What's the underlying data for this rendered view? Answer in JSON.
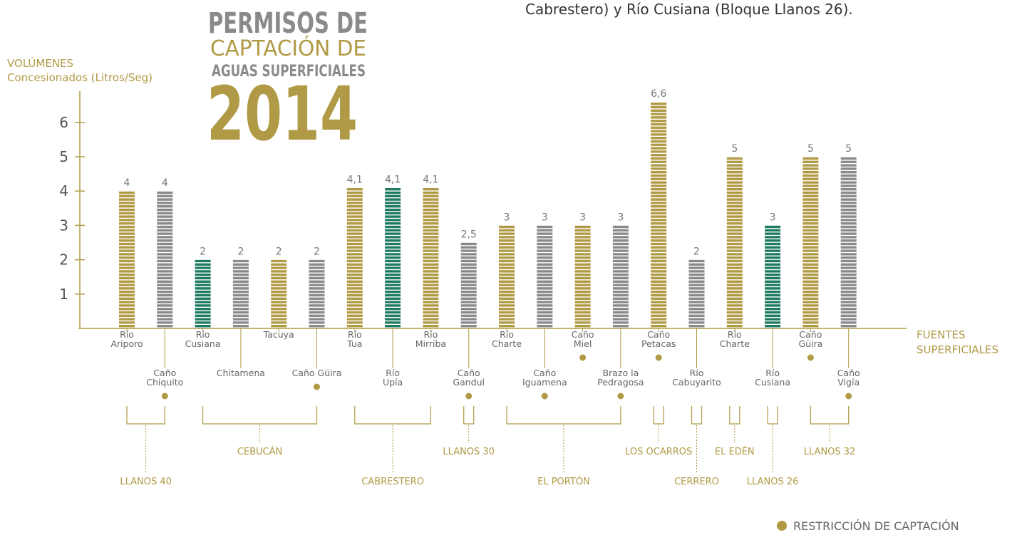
{
  "top_text": "Cabrestero) y Río Cusiana (Bloque Llanos 26).",
  "chart_data": {
    "type": "bar",
    "title_lines": [
      "PERMISOS DE",
      "CAPTACIÓN DE",
      "AGUAS SUPERFICIALES",
      "2014"
    ],
    "y_label": [
      "VOLÚMENES",
      "Concesionados (Litros/Seg)"
    ],
    "x_label": [
      "FUENTES",
      "SUPERFICIALES"
    ],
    "categories": [
      [
        "Río",
        "Ariporo"
      ],
      [
        "Caño",
        "Chiquito"
      ],
      [
        "Río",
        "Cusiana"
      ],
      [
        "Chitamena"
      ],
      [
        "Tacuya"
      ],
      [
        "Caño Güira"
      ],
      [
        "Río",
        "Tua"
      ],
      [
        "Río",
        "Upía"
      ],
      [
        "Río",
        "Mirriba"
      ],
      [
        "Caño",
        "Gandul"
      ],
      [
        "Río",
        "Charte"
      ],
      [
        "Caño",
        "Iguamena"
      ],
      [
        "Caño",
        "Miel"
      ],
      [
        "Brazo la",
        "Pedragosa"
      ],
      [
        "Caño",
        "Petacas"
      ],
      [
        "Río",
        "Cabuyarito"
      ],
      [
        "Río",
        "Charte"
      ],
      [
        "Río",
        "Cusiana"
      ],
      [
        "Caño",
        "Güira"
      ],
      [
        "Caño",
        "Vigía"
      ]
    ],
    "values": [
      4,
      4,
      2,
      2,
      2,
      2,
      4.1,
      4.1,
      4.1,
      2.5,
      3,
      3,
      3,
      3,
      6.6,
      2,
      5,
      3,
      5,
      5
    ],
    "value_labels": [
      "4",
      "4",
      "2",
      "2",
      "2",
      "2",
      "4,1",
      "4,1",
      "4,1",
      "2,5",
      "3",
      "3",
      "3",
      "3",
      "6,6",
      "2",
      "5",
      "3",
      "5",
      "5"
    ],
    "colors": [
      "#b09a45",
      "#8a8a8c",
      "#1f7a62",
      "#8a8a8c",
      "#b09a45",
      "#8a8a8c",
      "#b09a45",
      "#1f7a62",
      "#b09a45",
      "#8a8a8c",
      "#b09a45",
      "#8a8a8c",
      "#b09a45",
      "#8a8a8c",
      "#b09a45",
      "#8a8a8c",
      "#b09a45",
      "#1f7a62",
      "#b09a45",
      "#8a8a8c"
    ],
    "restriction": [
      false,
      true,
      false,
      false,
      false,
      true,
      false,
      false,
      false,
      true,
      false,
      true,
      true,
      true,
      true,
      false,
      false,
      false,
      true,
      true
    ],
    "blocks": [
      "LLANOS 40",
      "LLANOS 40",
      "CEBUCÁN",
      "CEBUCÁN",
      "CEBUCÁN",
      "CEBUCÁN",
      "CABRESTERO",
      "CABRESTERO",
      "CABRESTERO",
      "LLANOS 30",
      "EL PORTÓN",
      "EL PORTÓN",
      "EL PORTÓN",
      "EL PORTÓN",
      "LOS OCARROS",
      "CERRERO",
      "EL EDÉN",
      "LLANOS 26",
      "LLANOS 32",
      "LLANOS 32"
    ],
    "ylim": [
      0,
      7
    ],
    "yticks": [
      1,
      2,
      3,
      4,
      5,
      6
    ],
    "legend": "RESTRICCIÓN DE CAPTACIÓN",
    "legend_color": "#b09a45"
  }
}
